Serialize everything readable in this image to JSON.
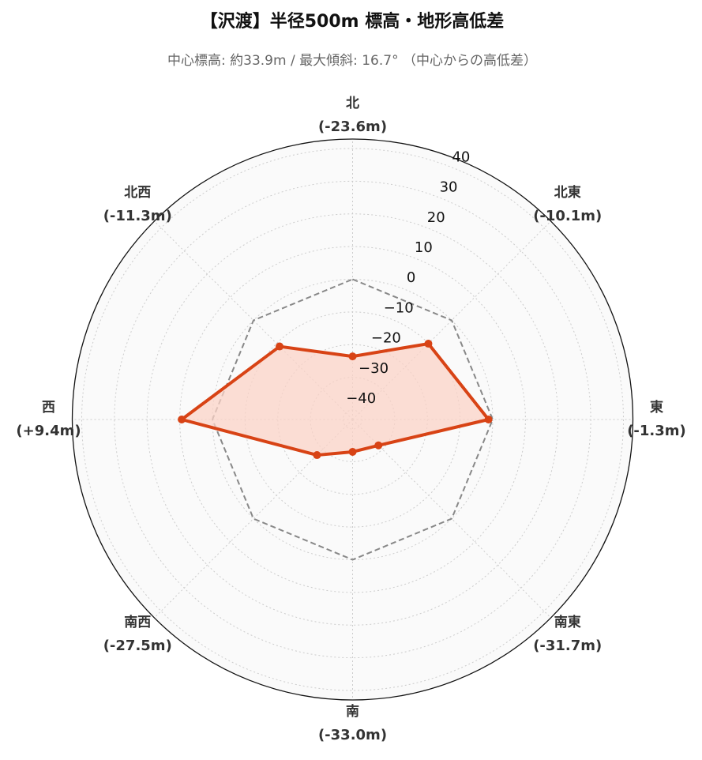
{
  "chart_data": {
    "type": "radar",
    "title": "【沢渡】半径500m 標高・地形高低差",
    "subtitle": "中心標高: 約33.9m / 最大傾斜: 16.7° （中心からの高低差）",
    "categories": [
      "北",
      "北東",
      "東",
      "南東",
      "南",
      "南西",
      "西",
      "北西"
    ],
    "values": [
      -23.6,
      -10.1,
      -1.3,
      -31.7,
      -33.0,
      -27.5,
      9.4,
      -11.3
    ],
    "value_labels": [
      "(-23.6m)",
      "(-10.1m)",
      "(-1.3m)",
      "(-31.7m)",
      "(-33.0m)",
      "(-27.5m)",
      "(+9.4m)",
      "(-11.3m)"
    ],
    "color": "#d84315",
    "fill_color": "#fbd3c7",
    "reference_value": 0,
    "ylim": [
      -42.9,
      42.9
    ],
    "yticks": [
      {
        "value": -40,
        "label": "−40"
      },
      {
        "value": -30,
        "label": "−30"
      },
      {
        "value": -20,
        "label": "−20"
      },
      {
        "value": -10,
        "label": "−10"
      },
      0,
      10,
      20,
      30,
      40
    ],
    "grid": true
  }
}
